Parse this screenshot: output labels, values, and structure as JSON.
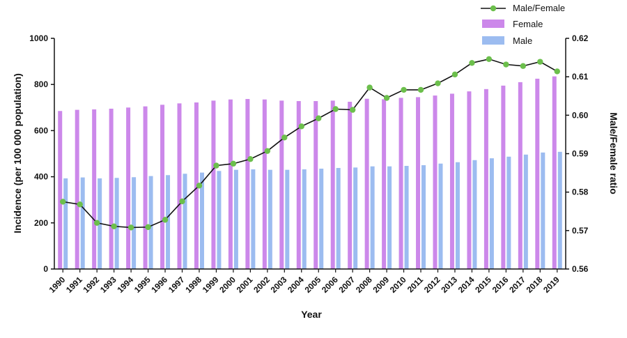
{
  "chart_data": {
    "type": "bar",
    "xlabel": "Year",
    "ylabel": "Incidence (per 100 000 population)",
    "y2label": "Male/Female ratio",
    "categories": [
      "1990",
      "1991",
      "1992",
      "1993",
      "1994",
      "1995",
      "1996",
      "1997",
      "1998",
      "1999",
      "2000",
      "2001",
      "2002",
      "2003",
      "2004",
      "2005",
      "2006",
      "2007",
      "2008",
      "2009",
      "2010",
      "2011",
      "2012",
      "2013",
      "2014",
      "2015",
      "2016",
      "2017",
      "2018",
      "2019"
    ],
    "ylim": [
      0,
      1000
    ],
    "yticks": [
      "0",
      "200",
      "400",
      "600",
      "800",
      "1000"
    ],
    "y2lim": [
      0.56,
      0.62
    ],
    "y2ticks": [
      "0.56",
      "0.57",
      "0.58",
      "0.59",
      "0.60",
      "0.61",
      "0.62"
    ],
    "grid": false,
    "legend_position": "top-right",
    "series": [
      {
        "name": "Female",
        "kind": "bar",
        "color": "#cc88ea",
        "values": [
          685,
          690,
          692,
          695,
          700,
          705,
          712,
          718,
          722,
          730,
          735,
          737,
          735,
          730,
          728,
          728,
          730,
          725,
          738,
          736,
          742,
          745,
          752,
          760,
          770,
          780,
          795,
          810,
          825,
          835
        ]
      },
      {
        "name": "Male",
        "kind": "bar",
        "color": "#9cbcf0",
        "values": [
          393,
          397,
          393,
          395,
          398,
          403,
          407,
          413,
          418,
          425,
          430,
          432,
          430,
          430,
          432,
          435,
          438,
          440,
          445,
          445,
          447,
          450,
          457,
          463,
          472,
          480,
          487,
          496,
          505,
          508
        ]
      },
      {
        "name": "Male/Female",
        "kind": "line",
        "axis": "right",
        "color": "#111111",
        "marker_color": "#6cbf4c",
        "values": [
          0.5775,
          0.5768,
          0.572,
          0.5711,
          0.5708,
          0.5709,
          0.5728,
          0.5776,
          0.5817,
          0.5869,
          0.5874,
          0.5886,
          0.5907,
          0.5942,
          0.5971,
          0.5992,
          0.6016,
          0.6014,
          0.6072,
          0.6045,
          0.6066,
          0.6066,
          0.6083,
          0.6106,
          0.6136,
          0.6146,
          0.6132,
          0.6128,
          0.6139,
          0.6114
        ]
      }
    ]
  }
}
